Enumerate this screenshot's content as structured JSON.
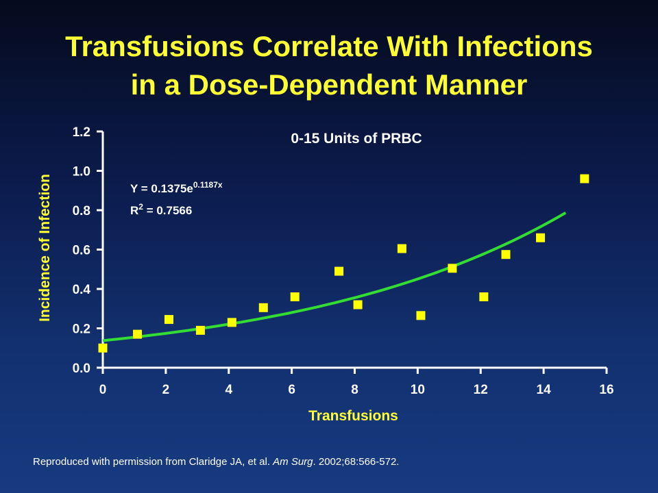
{
  "title": {
    "line1": "Transfusions Correlate With Infections",
    "line2": "in a Dose-Dependent Manner"
  },
  "colors": {
    "title": "#ffff33",
    "axis_text": "#ffffff",
    "axis_title": "#ffff33",
    "marker": "#ffff00",
    "trendline": "#33dd33"
  },
  "chart_data": {
    "type": "scatter",
    "subtitle": "0-15 Units of PRBC",
    "xlabel": "Transfusions",
    "ylabel": "Incidence of Infection",
    "xlim": [
      0,
      16
    ],
    "ylim": [
      0,
      1.2
    ],
    "x_ticks": [
      "0",
      "2",
      "4",
      "6",
      "8",
      "10",
      "12",
      "14",
      "16"
    ],
    "y_ticks": [
      "0.0",
      "0.2",
      "0.4",
      "0.6",
      "0.8",
      "1.0",
      "1.2"
    ],
    "grid": false,
    "points": [
      {
        "x": 0,
        "y": 0.1
      },
      {
        "x": 1.1,
        "y": 0.17
      },
      {
        "x": 2.1,
        "y": 0.245
      },
      {
        "x": 3.1,
        "y": 0.19
      },
      {
        "x": 4.1,
        "y": 0.23
      },
      {
        "x": 5.1,
        "y": 0.305
      },
      {
        "x": 6.1,
        "y": 0.36
      },
      {
        "x": 7.5,
        "y": 0.49
      },
      {
        "x": 8.1,
        "y": 0.32
      },
      {
        "x": 9.5,
        "y": 0.605
      },
      {
        "x": 10.1,
        "y": 0.265
      },
      {
        "x": 11.1,
        "y": 0.505
      },
      {
        "x": 12.1,
        "y": 0.36
      },
      {
        "x": 12.8,
        "y": 0.575
      },
      {
        "x": 13.9,
        "y": 0.66
      },
      {
        "x": 15.3,
        "y": 0.96
      }
    ],
    "trendline": {
      "type": "exponential",
      "a": 0.1375,
      "b": 0.1187,
      "x_range": [
        0,
        14.7
      ]
    },
    "equation": {
      "prefix": "Y = 0.1375e",
      "exponent": "0.1187x",
      "r2_prefix": "R",
      "r2_sup": "2",
      "r2_value": " = 0.7566"
    }
  },
  "footnote": {
    "before": "Reproduced with permission from Claridge JA, et al. ",
    "journal": "Am Surg",
    "after": ". 2002;68:566-572."
  }
}
